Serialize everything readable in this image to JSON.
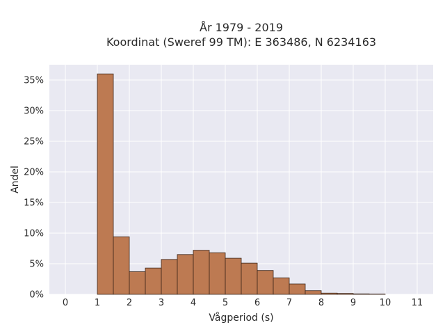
{
  "chart_data": {
    "type": "bar",
    "title_line1": "År 1979 - 2019",
    "title_line2": "Koordinat (Sweref 99 TM): E 363486, N 6234163",
    "xlabel": "Vågperiod (s)",
    "ylabel": "Andel",
    "xlim": [
      -0.5,
      11.5
    ],
    "ylim": [
      0,
      0.375
    ],
    "x_ticks": [
      0,
      1,
      2,
      3,
      4,
      5,
      6,
      7,
      8,
      9,
      10,
      11
    ],
    "y_ticks": [
      {
        "value": 0,
        "label": "0%"
      },
      {
        "value": 0.05,
        "label": "5%"
      },
      {
        "value": 0.1,
        "label": "10%"
      },
      {
        "value": 0.15,
        "label": "15%"
      },
      {
        "value": 0.2,
        "label": "20%"
      },
      {
        "value": 0.25,
        "label": "25%"
      },
      {
        "value": 0.3,
        "label": "30%"
      },
      {
        "value": 0.35,
        "label": "35%"
      }
    ],
    "bin_width": 0.5,
    "bins": [
      {
        "start": 1.0,
        "value": 0.36
      },
      {
        "start": 1.5,
        "value": 0.094
      },
      {
        "start": 2.0,
        "value": 0.037
      },
      {
        "start": 2.5,
        "value": 0.043
      },
      {
        "start": 3.0,
        "value": 0.057
      },
      {
        "start": 3.5,
        "value": 0.065
      },
      {
        "start": 4.0,
        "value": 0.072
      },
      {
        "start": 4.5,
        "value": 0.068
      },
      {
        "start": 5.0,
        "value": 0.059
      },
      {
        "start": 5.5,
        "value": 0.051
      },
      {
        "start": 6.0,
        "value": 0.039
      },
      {
        "start": 6.5,
        "value": 0.027
      },
      {
        "start": 7.0,
        "value": 0.017
      },
      {
        "start": 7.5,
        "value": 0.006
      },
      {
        "start": 8.0,
        "value": 0.002
      },
      {
        "start": 8.5,
        "value": 0.0015
      },
      {
        "start": 9.0,
        "value": 0.0008
      },
      {
        "start": 9.5,
        "value": 0.0005
      }
    ],
    "bar_color": "#bd7a52",
    "bar_edge_color": "#3a2418",
    "plot_background": "#e9e9f2",
    "grid": true
  }
}
